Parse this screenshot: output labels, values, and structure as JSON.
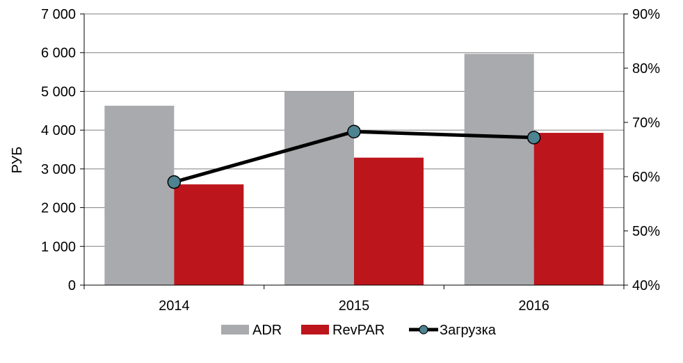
{
  "chart_data": {
    "type": "bar",
    "categories": [
      "2014",
      "2015",
      "2016"
    ],
    "series": [
      {
        "name": "ADR",
        "kind": "bar",
        "axis": "left",
        "color": "#a8aaad",
        "values": [
          4630,
          5000,
          5970
        ]
      },
      {
        "name": "RevPAR",
        "kind": "bar",
        "axis": "left",
        "color": "#bd151c",
        "values": [
          2600,
          3290,
          3930
        ]
      },
      {
        "name": "Загрузка",
        "kind": "line",
        "axis": "right",
        "color": "#000000",
        "marker_color": "#4e8391",
        "values": [
          59,
          68.3,
          67.2
        ]
      }
    ],
    "ylabel": "РУБ",
    "ylim": [
      0,
      7000
    ],
    "yticks": [
      0,
      1000,
      2000,
      3000,
      4000,
      5000,
      6000,
      7000
    ],
    "ytick_labels": [
      "0",
      "1 000",
      "2 000",
      "3 000",
      "4 000",
      "5 000",
      "6 000",
      "7 000"
    ],
    "y2lim": [
      40,
      90
    ],
    "y2ticks": [
      40,
      50,
      60,
      70,
      80,
      90
    ],
    "y2tick_labels": [
      "40%",
      "50%",
      "60%",
      "70%",
      "80%",
      "90%"
    ],
    "grid": true,
    "legend_position": "bottom"
  }
}
